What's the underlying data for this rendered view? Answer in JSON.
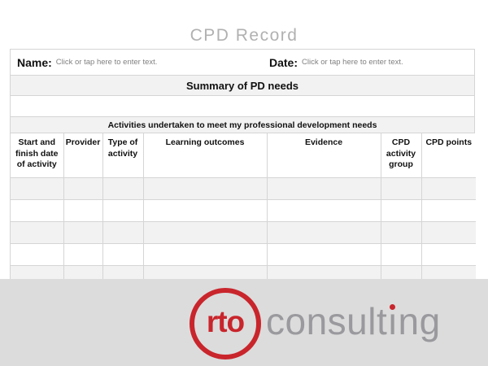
{
  "page_title": "CPD Record",
  "form": {
    "name_label": "Name:",
    "name_placeholder": "Click or tap here to enter text.",
    "date_label": "Date:",
    "date_placeholder": "Click or tap here to enter text.",
    "summary_header": "Summary of PD needs",
    "summary_value": "",
    "activities_header": "Activities undertaken to meet my professional development needs"
  },
  "table": {
    "columns": [
      "Start and finish date of activity",
      "Provider",
      "Type of activity",
      "Learning outcomes",
      "Evidence",
      "CPD activity group",
      "CPD points"
    ],
    "empty_row_count": 5
  },
  "footer": {
    "logo_circle_text": "rto",
    "logo_word_full": "consulting",
    "logo_word_part1": "consult",
    "logo_word_i": "ı",
    "logo_word_part2": "ng"
  },
  "colors": {
    "accent_red": "#c9252c",
    "logo_gray": "#9a9a9e",
    "band_gray": "#dcdcdc",
    "row_gray": "#f2f2f2",
    "border_gray": "#d5d5d5",
    "title_gray": "#b1b1b1",
    "placeholder_gray": "#808080"
  }
}
